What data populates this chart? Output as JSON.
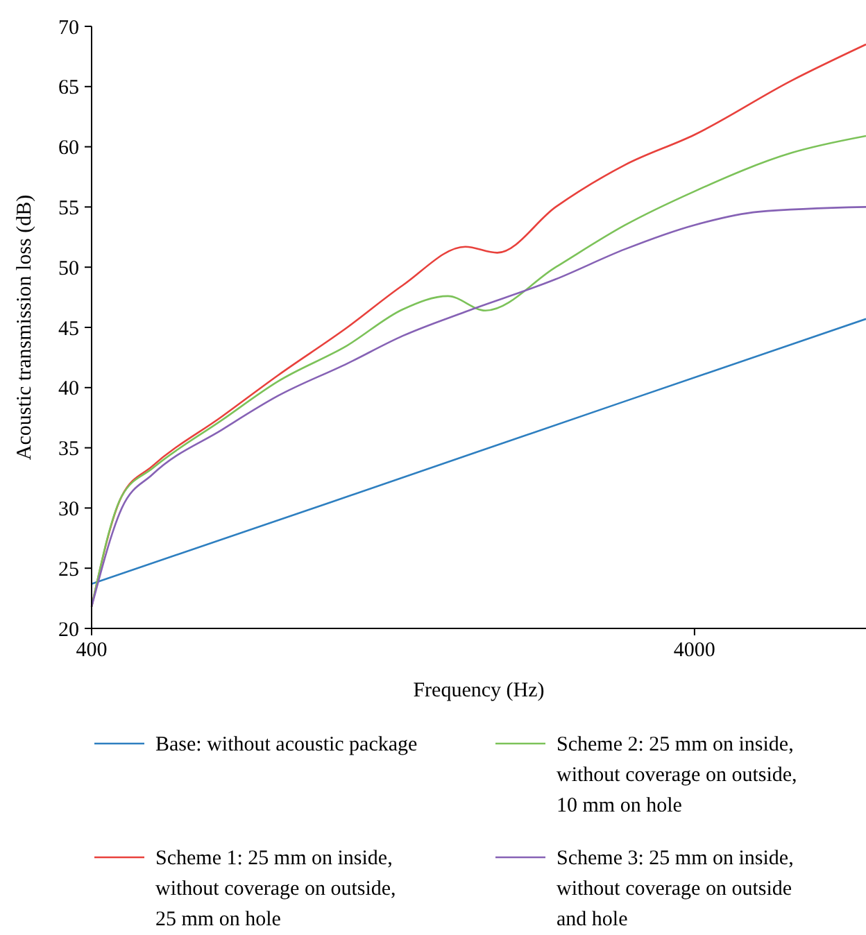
{
  "chart_data": {
    "type": "line",
    "xlabel": "Frequency (Hz)",
    "ylabel": "Acoustic transmission loss (dB)",
    "log": "x",
    "xlim": [
      400,
      7700
    ],
    "xticks": [
      400,
      4000
    ],
    "ylim": [
      20,
      70
    ],
    "yticks": [
      20,
      25,
      30,
      35,
      40,
      45,
      50,
      55,
      60,
      65,
      70
    ],
    "grid": false,
    "legend": "bottom",
    "marker": "none",
    "line_style": "solid",
    "series": [
      {
        "name": "Base: without acoustic package",
        "color": "#2e7fc0",
        "x": [
          400,
          1000,
          3000,
          7700
        ],
        "values": [
          23.7,
          30.5,
          38.7,
          45.7
        ]
      },
      {
        "name": "Scheme 1: 25 mm on inside, without coverage on outside, 25 mm on hole",
        "color": "#e8413c",
        "x": [
          400,
          449,
          505,
          658,
          814,
          1062,
          1313,
          1667,
          1883,
          2354,
          3069,
          4000,
          5797,
          7700
        ],
        "values": [
          21.8,
          31.0,
          33.5,
          37.6,
          41.0,
          45.0,
          48.5,
          51.7,
          51.2,
          55.0,
          58.5,
          61.0,
          65.5,
          68.5
        ]
      },
      {
        "name": "Scheme 2: 25 mm on inside, without coverage on outside, 10 mm on hole",
        "color": "#7cc259",
        "x": [
          400,
          449,
          505,
          658,
          814,
          1062,
          1313,
          1560,
          1800,
          2354,
          3069,
          4000,
          5797,
          7700
        ],
        "values": [
          21.8,
          31.0,
          33.3,
          37.3,
          40.5,
          43.5,
          46.5,
          47.6,
          46.4,
          50.0,
          53.5,
          56.3,
          59.5,
          60.9
        ]
      },
      {
        "name": "Scheme 3: 25 mm on inside, without coverage on outside and hole",
        "color": "#8662b5",
        "x": [
          400,
          449,
          505,
          658,
          814,
          1062,
          1313,
          1667,
          2354,
          3069,
          4000,
          5100,
          7700
        ],
        "values": [
          21.8,
          30.0,
          32.8,
          36.5,
          39.3,
          42.0,
          44.3,
          46.3,
          49.0,
          51.5,
          53.5,
          54.6,
          55.0
        ]
      }
    ]
  }
}
